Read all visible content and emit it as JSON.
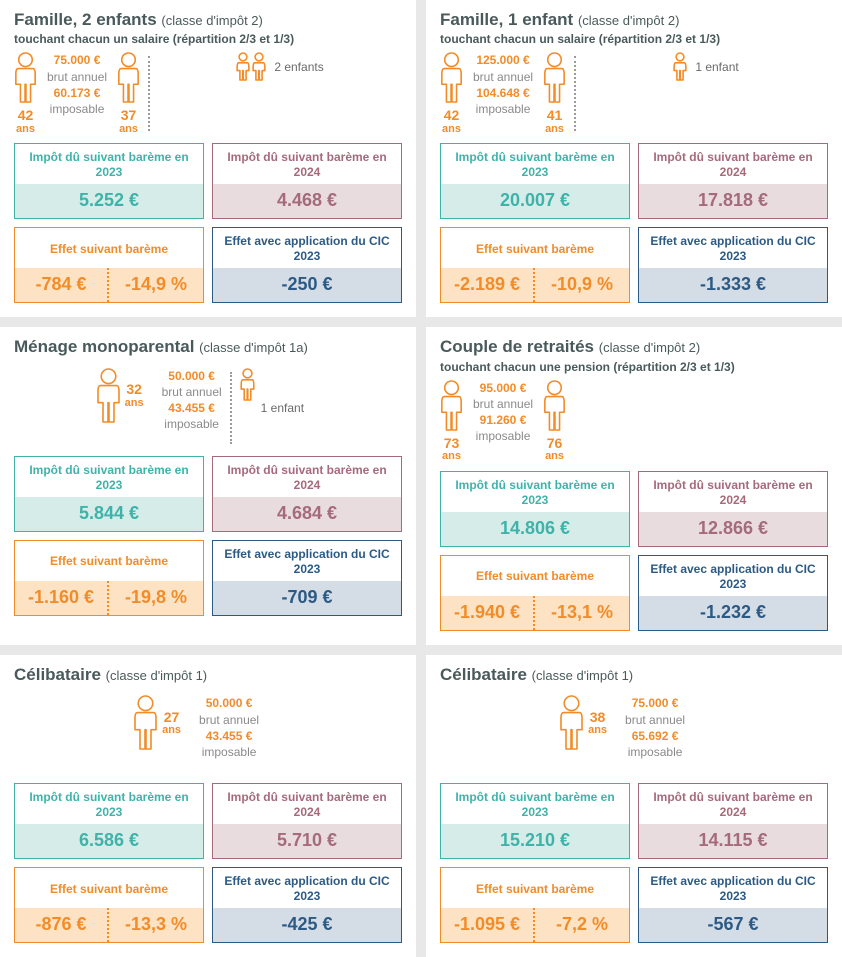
{
  "colors": {
    "teal": "#3fb3a9",
    "teal_bg": "#d5ece9",
    "maroon": "#a56a7c",
    "maroon_bg": "#e8dcdf",
    "orange": "#f28c28",
    "orange_bg": "#fde3c4",
    "navy": "#2c5a85",
    "navy_bg": "#d4dde5",
    "title": "#4a5a5a",
    "page_bg": "#ffffff",
    "separator": "#e8e8e8"
  },
  "labels": {
    "brut_annuel": "brut annuel",
    "imposable": "imposable",
    "ans": "ans",
    "tax2023": "Impôt dû suivant barème en 2023",
    "tax2024": "Impôt dû suivant barème en 2024",
    "effet": "Effet suivant barème",
    "cic": "Effet avec application du CIC 2023"
  },
  "cards": [
    {
      "title": "Famille, 2 enfants",
      "tax_class": "(classe d'impôt 2)",
      "subtitle": "touchant chacun un salaire (répartition 2/3 et 1/3)",
      "income_brut": "75.000 €",
      "income_imposable": "60.173 €",
      "persons": [
        {
          "age": "42"
        },
        {
          "age": "37"
        }
      ],
      "children_count": 2,
      "children_label": "2 enfants",
      "tax_2023": "5.252 €",
      "tax_2024": "4.468 €",
      "effect_abs": "-784 €",
      "effect_pct": "-14,9 %",
      "cic_effect": "-250 €"
    },
    {
      "title": "Famille, 1 enfant",
      "tax_class": "(classe d'impôt 2)",
      "subtitle": "touchant chacun un salaire (répartition 2/3 et 1/3)",
      "income_brut": "125.000 €",
      "income_imposable": "104.648 €",
      "persons": [
        {
          "age": "42"
        },
        {
          "age": "41"
        }
      ],
      "children_count": 1,
      "children_label": "1 enfant",
      "tax_2023": "20.007 €",
      "tax_2024": "17.818 €",
      "effect_abs": "-2.189 €",
      "effect_pct": "-10,9 %",
      "cic_effect": "-1.333 €"
    },
    {
      "title": "Ménage monoparental",
      "tax_class": "(classe d'impôt 1a)",
      "subtitle": "",
      "income_brut": "50.000 €",
      "income_imposable": "43.455 €",
      "persons": [
        {
          "age": "32"
        }
      ],
      "children_count": 1,
      "children_label": "1 enfant",
      "tax_2023": "5.844 €",
      "tax_2024": "4.684 €",
      "effect_abs": "-1.160 €",
      "effect_pct": "-19,8 %",
      "cic_effect": "-709 €"
    },
    {
      "title": "Couple de retraités",
      "tax_class": "(classe d'impôt 2)",
      "subtitle": "touchant chacun une pension (répartition 2/3 et 1/3)",
      "income_brut": "95.000 €",
      "income_imposable": "91.260 €",
      "persons": [
        {
          "age": "73"
        },
        {
          "age": "76"
        }
      ],
      "children_count": 0,
      "children_label": "",
      "tax_2023": "14.806 €",
      "tax_2024": "12.866 €",
      "effect_abs": "-1.940 €",
      "effect_pct": "-13,1 %",
      "cic_effect": "-1.232 €"
    },
    {
      "title": "Célibataire",
      "tax_class": "(classe d'impôt 1)",
      "subtitle": "",
      "income_brut": "50.000 €",
      "income_imposable": "43.455 €",
      "persons": [
        {
          "age": "27"
        }
      ],
      "children_count": 0,
      "children_label": "",
      "tax_2023": "6.586 €",
      "tax_2024": "5.710 €",
      "effect_abs": "-876 €",
      "effect_pct": "-13,3 %",
      "cic_effect": "-425 €"
    },
    {
      "title": "Célibataire",
      "tax_class": "(classe d'impôt 1)",
      "subtitle": "",
      "income_brut": "75.000 €",
      "income_imposable": "65.692 €",
      "persons": [
        {
          "age": "38"
        }
      ],
      "children_count": 0,
      "children_label": "",
      "tax_2023": "15.210 €",
      "tax_2024": "14.115 €",
      "effect_abs": "-1.095 €",
      "effect_pct": "-7,2 %",
      "cic_effect": "-567 €"
    }
  ]
}
